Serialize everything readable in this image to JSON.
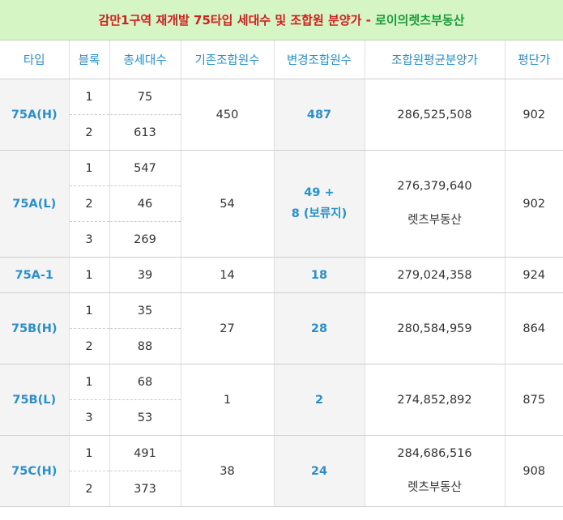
{
  "title": {
    "main": "감만1구역 재개발 75타입 세대수 및 조합원 분양가 - ",
    "brand": "로이의렛츠부동산"
  },
  "headers": [
    "타입",
    "블록",
    "총세대수",
    "기존조합원수",
    "변경조합원수",
    "조합원평균분양가",
    "평단가"
  ],
  "groups": [
    {
      "type": "75A(H)",
      "rows": [
        {
          "block": "1",
          "units": "75"
        },
        {
          "block": "2",
          "units": "613"
        }
      ],
      "existing": "450",
      "changed": [
        "487"
      ],
      "price": [
        "286,525,508"
      ],
      "per_pyeong": "902"
    },
    {
      "type": "75A(L)",
      "rows": [
        {
          "block": "1",
          "units": "547"
        },
        {
          "block": "2",
          "units": "46"
        },
        {
          "block": "3",
          "units": "269"
        }
      ],
      "existing": "54",
      "changed": [
        "49 +",
        "8 (보류지)"
      ],
      "price": [
        "276,379,640",
        "렛츠부동산"
      ],
      "per_pyeong": "902"
    },
    {
      "type": "75A-1",
      "rows": [
        {
          "block": "1",
          "units": "39"
        }
      ],
      "existing": "14",
      "changed": [
        "18"
      ],
      "price": [
        "279,024,358"
      ],
      "per_pyeong": "924"
    },
    {
      "type": "75B(H)",
      "rows": [
        {
          "block": "1",
          "units": "35"
        },
        {
          "block": "2",
          "units": "88"
        }
      ],
      "existing": "27",
      "changed": [
        "28"
      ],
      "price": [
        "280,584,959"
      ],
      "per_pyeong": "864"
    },
    {
      "type": "75B(L)",
      "rows": [
        {
          "block": "1",
          "units": "68"
        },
        {
          "block": "3",
          "units": "53"
        }
      ],
      "existing": "1",
      "changed": [
        "2"
      ],
      "price": [
        "274,852,892"
      ],
      "per_pyeong": "875"
    },
    {
      "type": "75C(H)",
      "rows": [
        {
          "block": "1",
          "units": "491"
        },
        {
          "block": "2",
          "units": "373"
        }
      ],
      "existing": "38",
      "changed": [
        "24"
      ],
      "price": [
        "284,686,516",
        "렛츠부동산"
      ],
      "per_pyeong": "908"
    }
  ]
}
